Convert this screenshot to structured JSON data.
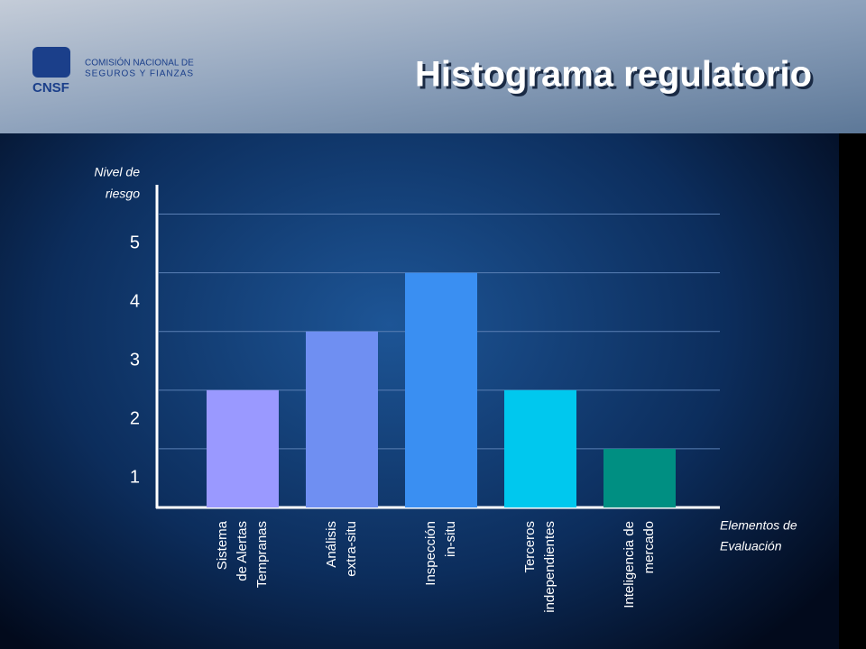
{
  "header": {
    "logo": "CNSF",
    "org_line1": "COMISIÓN NACIONAL DE",
    "org_line2": "SEGUROS Y FIANZAS"
  },
  "chart_data": {
    "type": "bar",
    "title": "Histograma regulatorio",
    "y_label": [
      "Nivel de",
      "riesgo"
    ],
    "x_label": [
      "Elementos de",
      "Evaluación"
    ],
    "categories": [
      [
        "Sistema",
        "de Alertas",
        "Tempranas"
      ],
      [
        "Análisis",
        "extra-situ"
      ],
      [
        "Inspección",
        "in-situ"
      ],
      [
        "Terceros",
        "independientes"
      ],
      [
        "Inteligencia de",
        "mercado"
      ]
    ],
    "values": [
      2,
      3,
      4,
      2,
      1
    ],
    "colors": [
      "#9a99ff",
      "#6f8ff2",
      "#3a8ff2",
      "#00c8ee",
      "#008f82"
    ],
    "ylim": [
      0,
      5.5
    ],
    "yticks": [
      1,
      2,
      3,
      4,
      5
    ],
    "grid": true
  }
}
